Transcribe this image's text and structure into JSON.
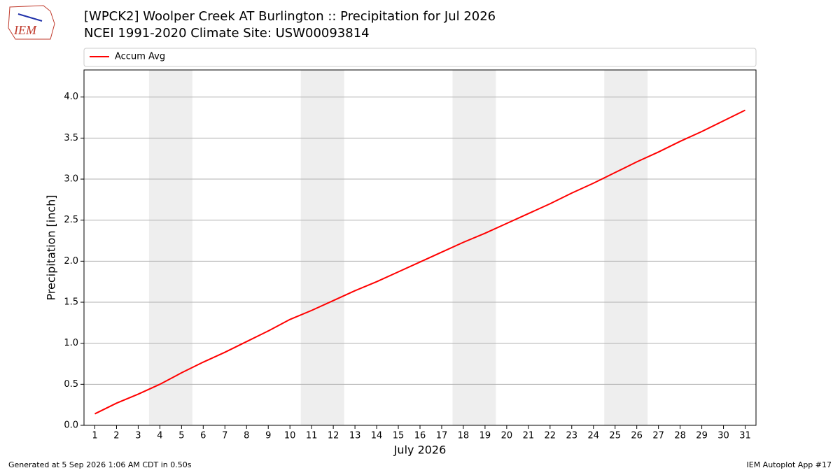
{
  "chart_data": {
    "type": "line",
    "title": "[WPCK2] Woolper Creek  AT Burlington :: Precipitation for Jul 2026",
    "subtitle": "NCEI 1991-2020 Climate Site: USW00093814",
    "logo": "IEM",
    "x_label": "July 2026",
    "y_label": "Precipitation [inch]",
    "footer_left": "Generated at 5 Sep 2026 1:06 AM CDT in 0.50s",
    "footer_right": "IEM Autoplot App #17",
    "x": [
      1,
      2,
      3,
      4,
      5,
      6,
      7,
      8,
      9,
      10,
      11,
      12,
      13,
      14,
      15,
      16,
      17,
      18,
      19,
      20,
      21,
      22,
      23,
      24,
      25,
      26,
      27,
      28,
      29,
      30,
      31
    ],
    "series": [
      {
        "name": "Accum Avg",
        "color": "#ff0000",
        "values": [
          0.14,
          0.27,
          0.38,
          0.5,
          0.64,
          0.77,
          0.89,
          1.02,
          1.15,
          1.29,
          1.4,
          1.52,
          1.64,
          1.75,
          1.87,
          1.99,
          2.11,
          2.23,
          2.34,
          2.46,
          2.58,
          2.7,
          2.83,
          2.95,
          3.08,
          3.21,
          3.33,
          3.46,
          3.58,
          3.71,
          3.84
        ]
      }
    ],
    "shaded_spans": [
      [
        3.5,
        5.5
      ],
      [
        10.5,
        12.5
      ],
      [
        17.5,
        19.5
      ],
      [
        24.5,
        26.5
      ]
    ],
    "shade_color": "#eeeeee",
    "xlim": [
      0.5,
      31.5
    ],
    "xticks": [
      1,
      2,
      3,
      4,
      5,
      6,
      7,
      8,
      9,
      10,
      11,
      12,
      13,
      14,
      15,
      16,
      17,
      18,
      19,
      20,
      21,
      22,
      23,
      24,
      25,
      26,
      27,
      28,
      29,
      30,
      31
    ],
    "ylim": [
      0,
      4.33
    ],
    "yticks": [
      {
        "value": 0,
        "label": "0.0"
      },
      {
        "value": 0.5,
        "label": "0.5"
      },
      {
        "value": 1,
        "label": "1.0"
      },
      {
        "value": 1.5,
        "label": "1.5"
      },
      {
        "value": 2,
        "label": "2.0"
      },
      {
        "value": 2.5,
        "label": "2.5"
      },
      {
        "value": 3,
        "label": "3.0"
      },
      {
        "value": 3.5,
        "label": "3.5"
      },
      {
        "value": 4,
        "label": "4.0"
      }
    ],
    "grid": true,
    "legend": "top"
  }
}
